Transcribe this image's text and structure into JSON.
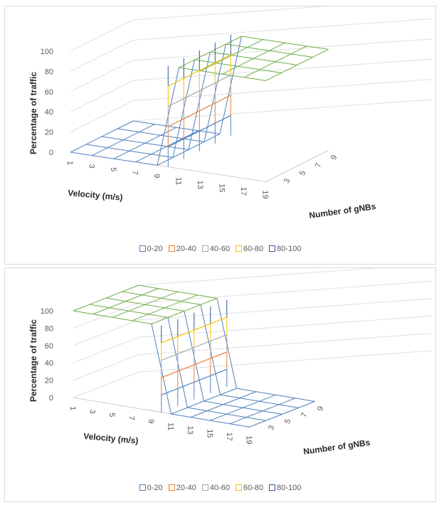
{
  "chart_data": [
    {
      "type": "surface",
      "zlabel": "Percentage of traffic",
      "xlabel": "Velocity (m/s)",
      "ylabel": "Number of gNBs",
      "z_ticks": [
        "0",
        "20",
        "40",
        "60",
        "80",
        "100"
      ],
      "x_ticks": [
        "1",
        "3",
        "5",
        "7",
        "9",
        "11",
        "13",
        "15",
        "17",
        "19"
      ],
      "y_ticks": [
        "3",
        "5",
        "7",
        "9"
      ],
      "legend": [
        {
          "label": "0-20",
          "color": "#4f81bd"
        },
        {
          "label": "20-40",
          "color": "#ed7d31"
        },
        {
          "label": "40-60",
          "color": "#a5a5a5"
        },
        {
          "label": "60-80",
          "color": "#ffc000"
        },
        {
          "label": "80-100",
          "color": "#2f5597"
        }
      ],
      "top_color": "#70ad47",
      "surface": {
        "low": 0,
        "high": 100,
        "transition_x": "11",
        "note": ""
      }
    },
    {
      "type": "surface",
      "zlabel": "Percentage of traffic",
      "xlabel": "Velocity (m/s)",
      "ylabel": "Number of gNBs",
      "z_ticks": [
        "0",
        "20",
        "40",
        "60",
        "80",
        "100"
      ],
      "x_ticks": [
        "1",
        "3",
        "5",
        "7",
        "9",
        "11",
        "13",
        "15",
        "17",
        "19"
      ],
      "y_ticks": [
        "3",
        "5",
        "7",
        "9"
      ],
      "legend": [
        {
          "label": "0-20",
          "color": "#4f81bd"
        },
        {
          "label": "20-40",
          "color": "#ed7d31"
        },
        {
          "label": "40-60",
          "color": "#a5a5a5"
        },
        {
          "label": "60-80",
          "color": "#ffc000"
        },
        {
          "label": "80-100",
          "color": "#2f5597"
        }
      ],
      "top_color": "#70ad47",
      "surface": {
        "low": 0,
        "high": 100,
        "transition_x": "11",
        "note": ""
      }
    }
  ]
}
